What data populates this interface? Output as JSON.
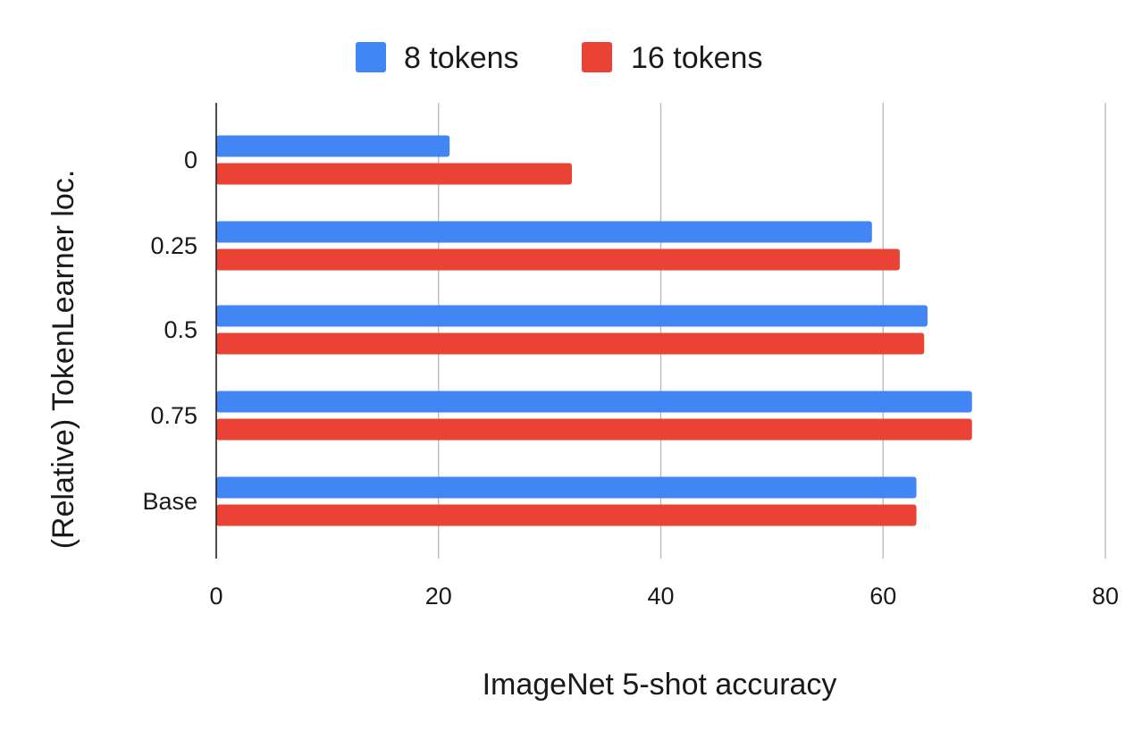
{
  "chart_data": {
    "type": "bar",
    "orientation": "horizontal",
    "categories": [
      "0",
      "0.25",
      "0.5",
      "0.75",
      "Base"
    ],
    "series": [
      {
        "name": "8 tokens",
        "color": "#4285f4",
        "values": [
          21,
          59,
          64,
          68,
          63
        ]
      },
      {
        "name": "16 tokens",
        "color": "#ea4335",
        "values": [
          32,
          61.5,
          63.7,
          68,
          63
        ]
      }
    ],
    "xlabel": "ImageNet 5-shot accuracy",
    "ylabel": "(Relative) TokenLearner loc.",
    "xlim": [
      0,
      80
    ],
    "xticks": [
      0,
      20,
      40,
      60,
      80
    ],
    "grid": true,
    "legend_position": "top"
  }
}
